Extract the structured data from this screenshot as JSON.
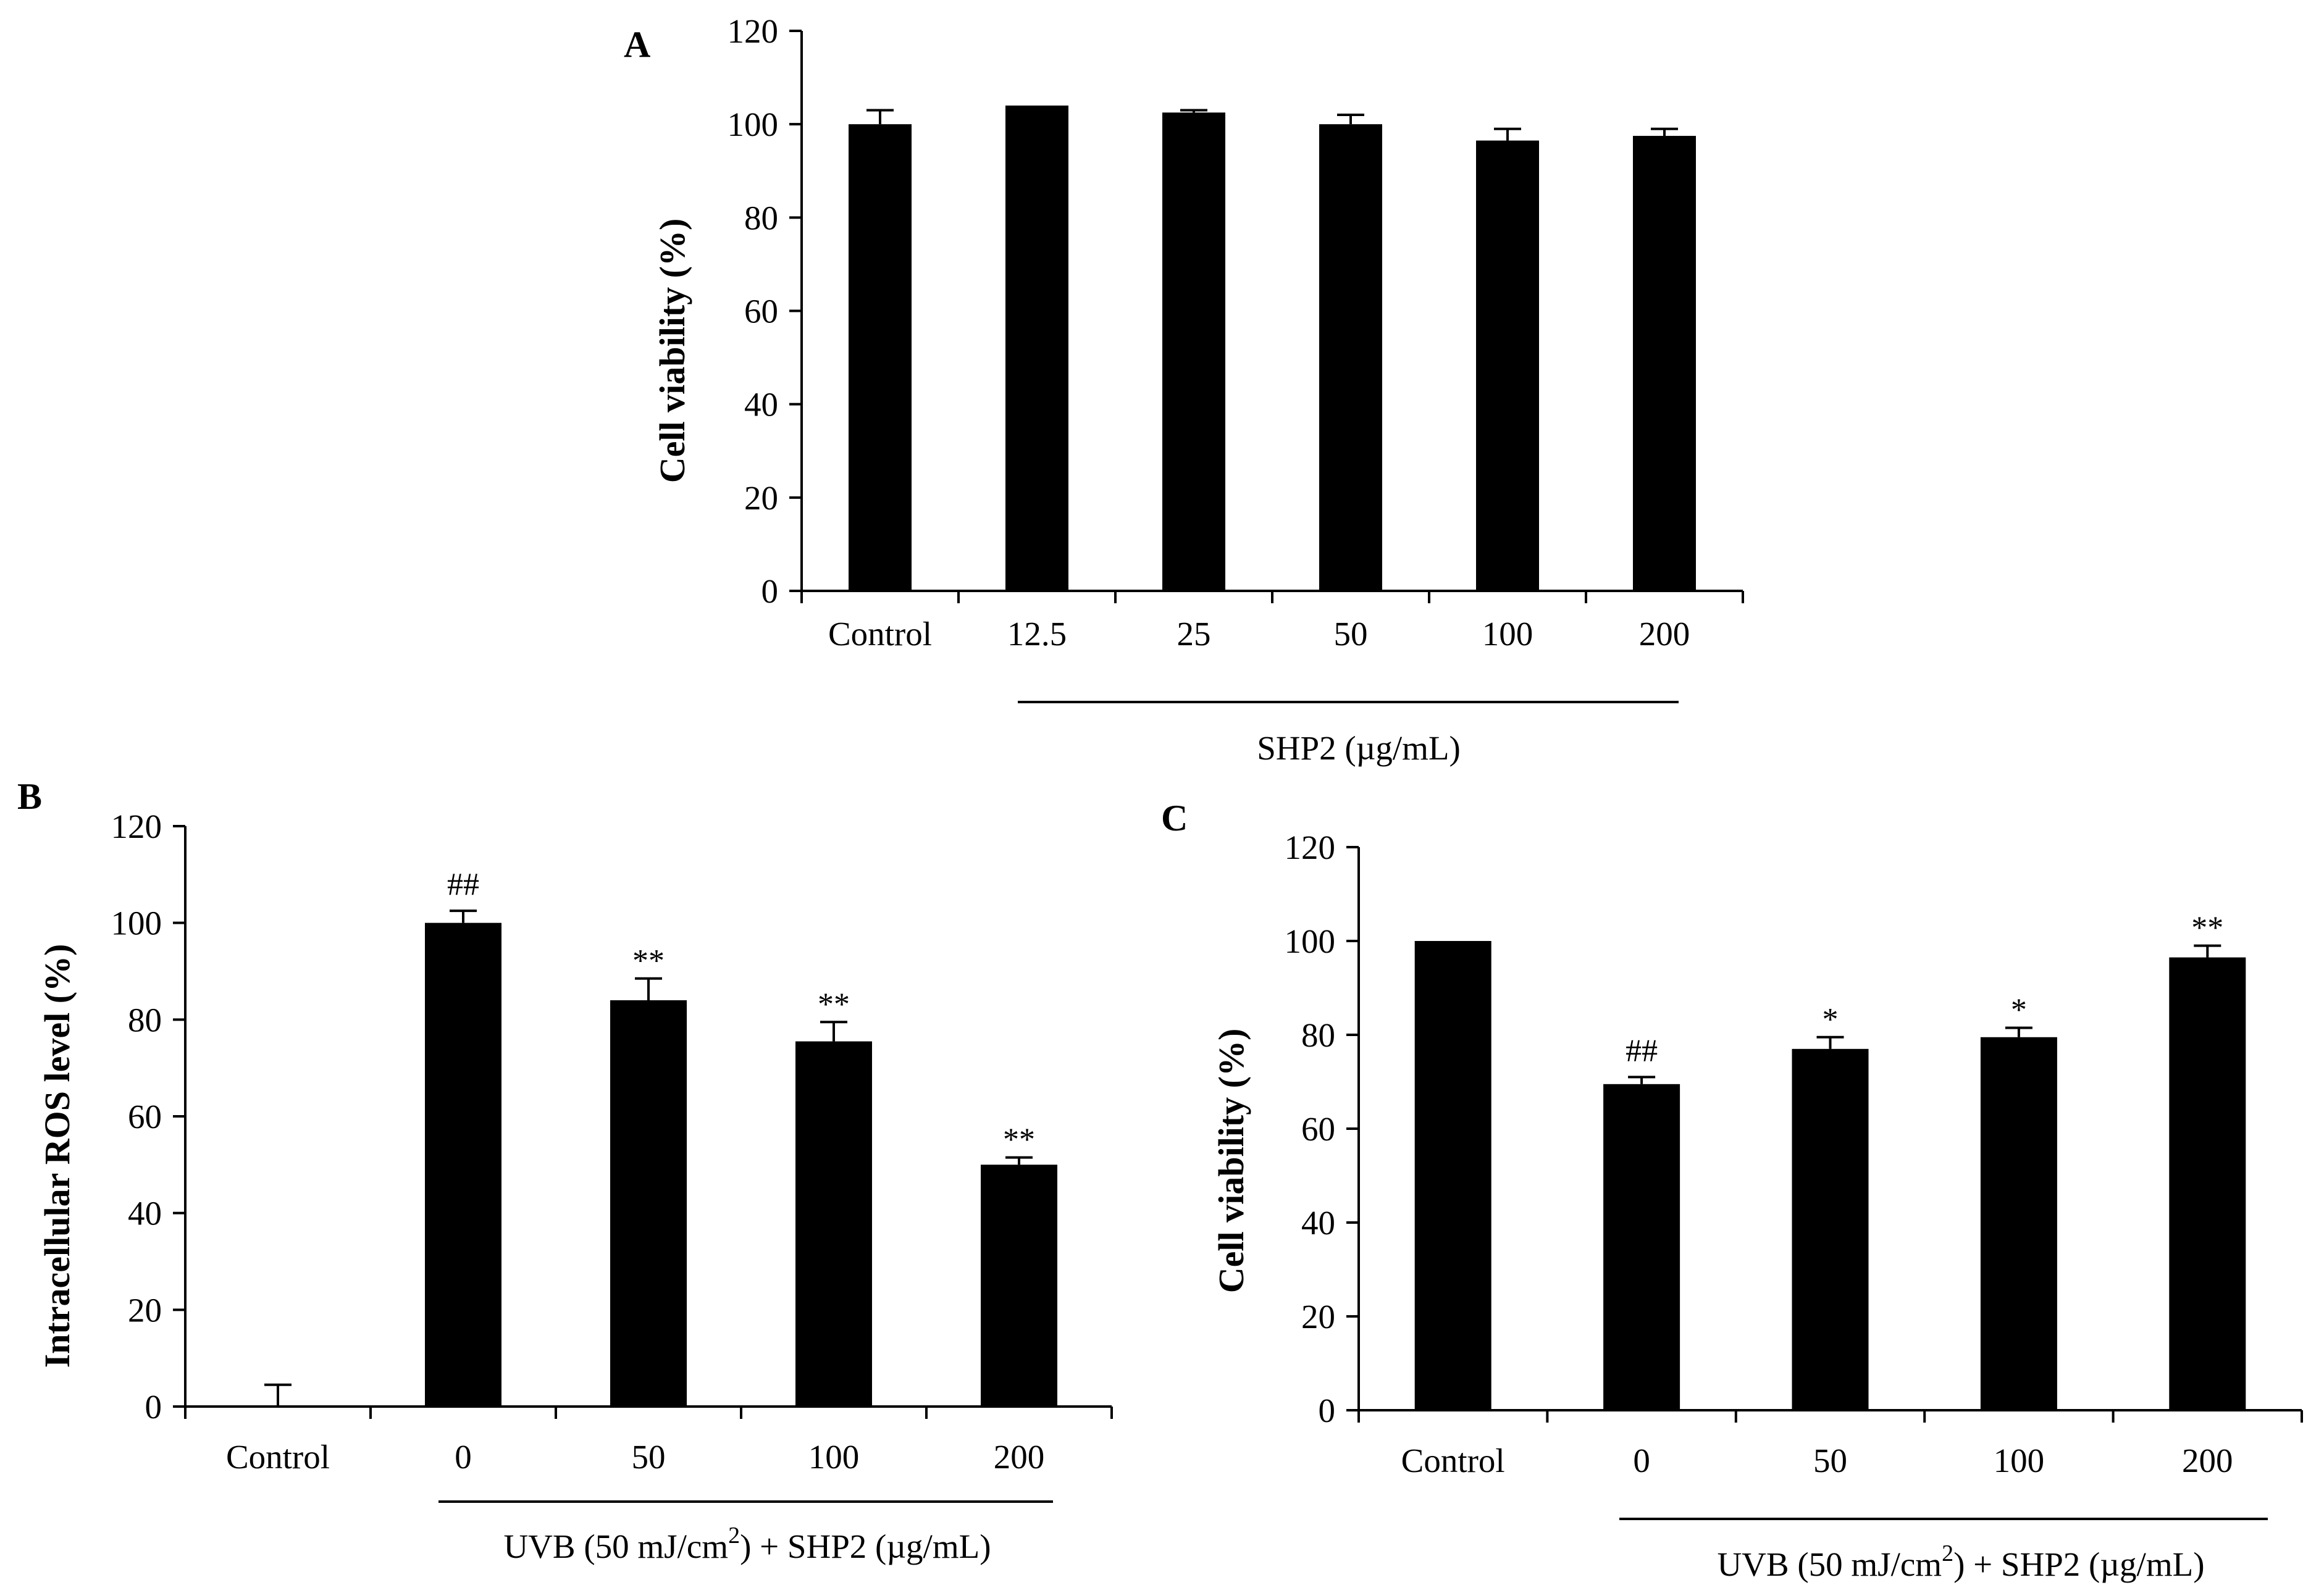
{
  "chart_data": [
    {
      "panel": "A",
      "type": "bar",
      "ylabel": "Cell viability (%)",
      "xlabel": "",
      "ylim": [
        0,
        120
      ],
      "yticks": [
        0,
        20,
        40,
        60,
        80,
        100,
        120
      ],
      "categories": [
        "Control",
        "12.5",
        "25",
        "50",
        "100",
        "200"
      ],
      "values": [
        100,
        104,
        102.5,
        100,
        96.5,
        97.5
      ],
      "errors": [
        3,
        0,
        0.5,
        2,
        2.5,
        1.5
      ],
      "annotations": [
        "",
        "",
        "",
        "",
        "",
        ""
      ],
      "group_label": "SHP2 (µg/mL)",
      "grid": false,
      "bar_color": "#000000"
    },
    {
      "panel": "B",
      "type": "bar",
      "ylabel": "Intracellular ROS level (%)",
      "xlabel": "",
      "ylim": [
        0,
        120
      ],
      "yticks": [
        0,
        20,
        40,
        60,
        80,
        100,
        120
      ],
      "categories": [
        "Control",
        "0",
        "50",
        "100",
        "200"
      ],
      "values": [
        0,
        100,
        84,
        75.5,
        50
      ],
      "errors": [
        4.5,
        2.5,
        4.5,
        4,
        1.5
      ],
      "annotations": [
        "",
        "##",
        "**",
        "**",
        "**"
      ],
      "group_label_parts": [
        "UVB (50 mJ/cm",
        "2",
        ") + SHP2 (µg/mL)"
      ],
      "grid": false,
      "bar_color": "#000000"
    },
    {
      "panel": "C",
      "type": "bar",
      "ylabel": "Cell viability (%)",
      "xlabel": "",
      "ylim": [
        0,
        120
      ],
      "yticks": [
        0,
        20,
        40,
        60,
        80,
        100,
        120
      ],
      "categories": [
        "Control",
        "0",
        "50",
        "100",
        "200"
      ],
      "values": [
        100,
        69.5,
        77,
        79.5,
        96.5
      ],
      "errors": [
        0,
        1.5,
        2.5,
        2,
        2.5
      ],
      "annotations": [
        "",
        "##",
        "*",
        "*",
        "**"
      ],
      "group_label_parts": [
        "UVB (50 mJ/cm",
        "2",
        ") + SHP2 (µg/mL)"
      ],
      "grid": false,
      "bar_color": "#000000"
    }
  ]
}
